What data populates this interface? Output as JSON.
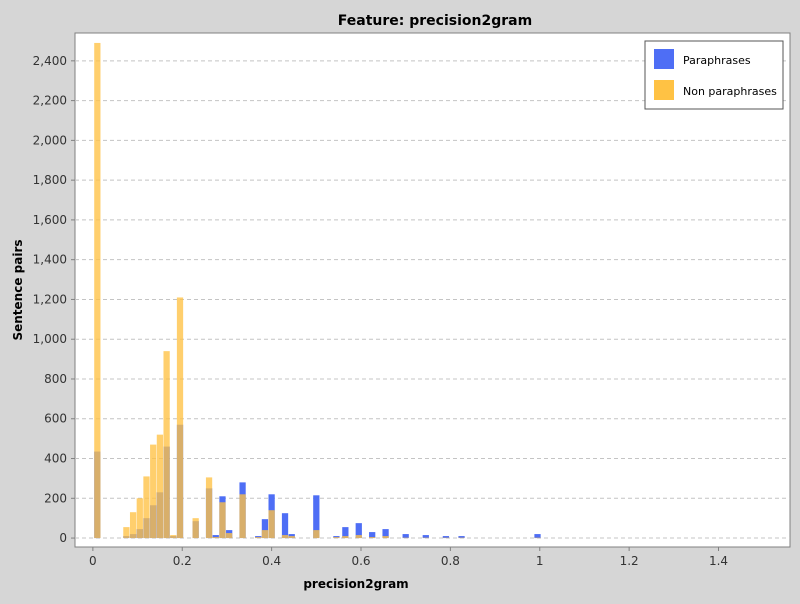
{
  "chart_data": {
    "type": "bar",
    "title": "Feature: precision2gram",
    "xlabel": "precision2gram",
    "ylabel": "Sentence pairs",
    "xlim": [
      -0.04,
      1.56
    ],
    "ylim": [
      -45,
      2540
    ],
    "x_ticks": [
      {
        "value": 0,
        "label": "0"
      },
      {
        "value": 0.2,
        "label": "0.2"
      },
      {
        "value": 0.4,
        "label": "0.4"
      },
      {
        "value": 0.6,
        "label": "0.6"
      },
      {
        "value": 0.8,
        "label": "0.8"
      },
      {
        "value": 1,
        "label": "1"
      },
      {
        "value": 1.2,
        "label": "1.2"
      },
      {
        "value": 1.4,
        "label": "1.4"
      }
    ],
    "y_ticks": [
      {
        "value": 0,
        "label": "0"
      },
      {
        "value": 200,
        "label": "200"
      },
      {
        "value": 400,
        "label": "400"
      },
      {
        "value": 600,
        "label": "600"
      },
      {
        "value": 800,
        "label": "800"
      },
      {
        "value": 1000,
        "label": "1,000"
      },
      {
        "value": 1200,
        "label": "1,200"
      },
      {
        "value": 1400,
        "label": "1,400"
      },
      {
        "value": 1600,
        "label": "1,600"
      },
      {
        "value": 1800,
        "label": "1,800"
      },
      {
        "value": 2000,
        "label": "2,000"
      },
      {
        "value": 2200,
        "label": "2,200"
      },
      {
        "value": 2400,
        "label": "2,400"
      }
    ],
    "grid": true,
    "legend_position": "top-right",
    "bin_width": 0.014,
    "x": [
      0.01,
      0.075,
      0.09,
      0.105,
      0.12,
      0.135,
      0.15,
      0.165,
      0.18,
      0.195,
      0.23,
      0.26,
      0.275,
      0.29,
      0.305,
      0.335,
      0.37,
      0.385,
      0.4,
      0.43,
      0.445,
      0.5,
      0.545,
      0.565,
      0.595,
      0.625,
      0.655,
      0.7,
      0.745,
      0.79,
      0.825,
      0.995
    ],
    "series": [
      {
        "name": "Paraphrases",
        "color": "#4e6ef5",
        "values": [
          435,
          10,
          20,
          45,
          100,
          165,
          230,
          460,
          10,
          570,
          85,
          250,
          15,
          210,
          40,
          280,
          10,
          95,
          220,
          125,
          20,
          215,
          10,
          55,
          75,
          30,
          45,
          20,
          15,
          10,
          10,
          20
        ]
      },
      {
        "name": "Non paraphrases",
        "color": "#ffc244",
        "values": [
          2490,
          55,
          130,
          200,
          310,
          470,
          520,
          940,
          15,
          1210,
          100,
          305,
          5,
          180,
          25,
          220,
          5,
          40,
          140,
          15,
          10,
          40,
          5,
          10,
          15,
          5,
          10,
          2,
          2,
          2,
          2,
          2
        ]
      }
    ]
  }
}
